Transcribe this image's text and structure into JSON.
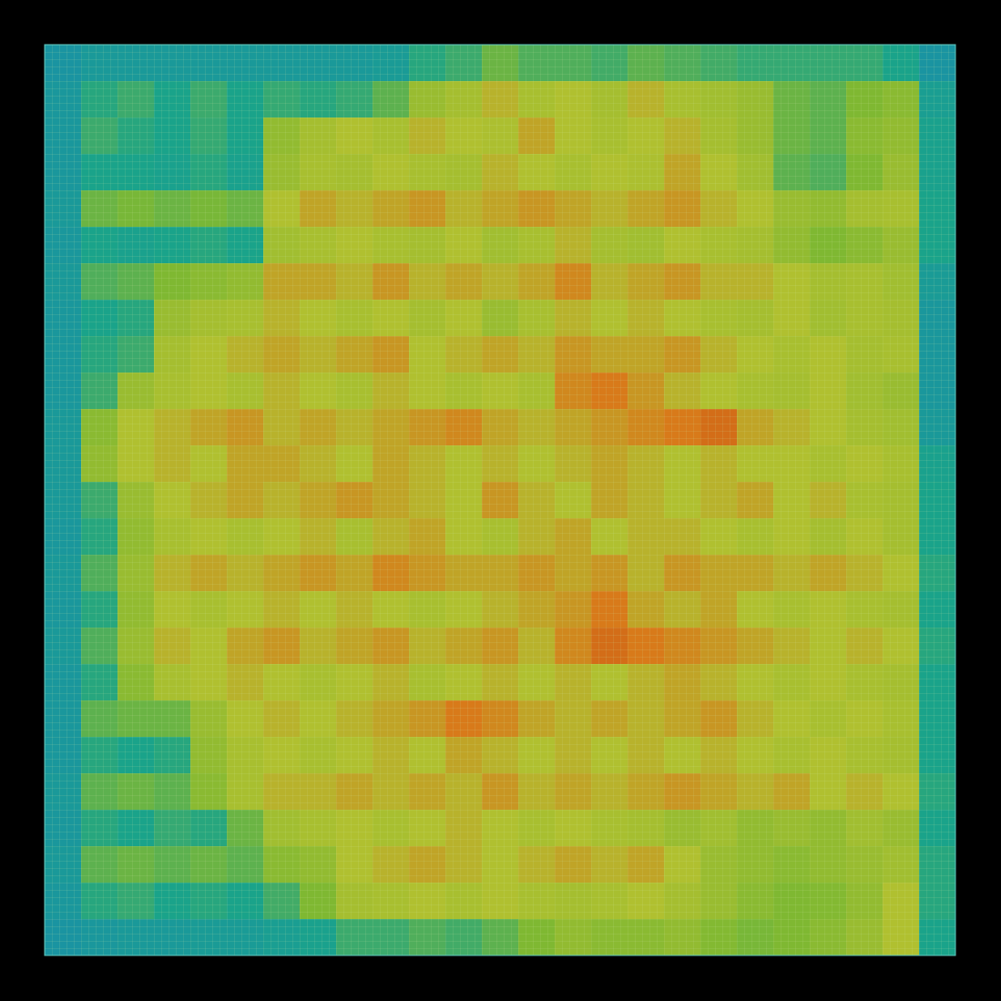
{
  "chart_data": {
    "type": "heatmap",
    "tick_labels": false,
    "zlim": [
      0,
      100
    ],
    "cells": [
      [
        15,
        20,
        20,
        20,
        20,
        20,
        20,
        20,
        20,
        22,
        32,
        35,
        42,
        38,
        38,
        36,
        40,
        38,
        36,
        34,
        34,
        34,
        34,
        30,
        15
      ],
      [
        18,
        32,
        35,
        30,
        35,
        30,
        34,
        32,
        34,
        40,
        52,
        55,
        60,
        56,
        58,
        55,
        60,
        56,
        54,
        52,
        42,
        40,
        45,
        48,
        25
      ],
      [
        18,
        35,
        32,
        30,
        34,
        30,
        50,
        55,
        58,
        56,
        60,
        58,
        57,
        62,
        58,
        56,
        58,
        60,
        55,
        52,
        42,
        40,
        48,
        50,
        28
      ],
      [
        18,
        30,
        30,
        28,
        32,
        28,
        52,
        56,
        55,
        58,
        56,
        55,
        60,
        58,
        56,
        58,
        57,
        62,
        58,
        54,
        40,
        38,
        45,
        52,
        28
      ],
      [
        20,
        42,
        44,
        42,
        44,
        42,
        58,
        62,
        60,
        62,
        64,
        60,
        62,
        64,
        62,
        60,
        62,
        64,
        60,
        58,
        52,
        50,
        55,
        56,
        30
      ],
      [
        18,
        30,
        28,
        30,
        32,
        30,
        54,
        56,
        58,
        56,
        55,
        58,
        54,
        56,
        60,
        55,
        54,
        58,
        56,
        55,
        50,
        45,
        48,
        52,
        30
      ],
      [
        20,
        38,
        40,
        45,
        48,
        50,
        62,
        62,
        60,
        64,
        60,
        62,
        60,
        62,
        66,
        60,
        62,
        64,
        60,
        60,
        58,
        55,
        56,
        54,
        22
      ],
      [
        18,
        30,
        32,
        52,
        55,
        56,
        60,
        58,
        56,
        58,
        55,
        58,
        52,
        56,
        60,
        58,
        60,
        58,
        56,
        55,
        58,
        54,
        56,
        55,
        18
      ],
      [
        18,
        32,
        35,
        55,
        58,
        60,
        62,
        60,
        62,
        64,
        58,
        60,
        62,
        60,
        64,
        62,
        62,
        64,
        60,
        58,
        56,
        58,
        55,
        56,
        18
      ],
      [
        18,
        35,
        52,
        56,
        58,
        56,
        60,
        58,
        56,
        60,
        58,
        56,
        58,
        56,
        66,
        68,
        64,
        60,
        58,
        56,
        55,
        58,
        54,
        52,
        18
      ],
      [
        20,
        48,
        58,
        60,
        62,
        64,
        60,
        62,
        60,
        62,
        64,
        66,
        62,
        60,
        62,
        64,
        66,
        68,
        70,
        62,
        60,
        58,
        55,
        54,
        20
      ],
      [
        20,
        50,
        58,
        60,
        58,
        62,
        62,
        60,
        58,
        62,
        60,
        58,
        60,
        58,
        60,
        62,
        60,
        58,
        60,
        58,
        58,
        56,
        58,
        56,
        28
      ],
      [
        20,
        35,
        52,
        58,
        60,
        62,
        60,
        62,
        64,
        62,
        60,
        58,
        64,
        60,
        58,
        62,
        60,
        58,
        60,
        62,
        58,
        60,
        56,
        55,
        30
      ],
      [
        18,
        32,
        50,
        56,
        58,
        56,
        58,
        60,
        56,
        60,
        62,
        58,
        56,
        60,
        62,
        58,
        60,
        60,
        58,
        56,
        58,
        55,
        58,
        55,
        30
      ],
      [
        20,
        38,
        52,
        60,
        62,
        60,
        62,
        64,
        62,
        66,
        64,
        62,
        62,
        64,
        62,
        64,
        60,
        64,
        62,
        62,
        60,
        62,
        60,
        58,
        32
      ],
      [
        18,
        32,
        50,
        58,
        56,
        58,
        60,
        58,
        60,
        58,
        56,
        58,
        60,
        62,
        64,
        68,
        62,
        60,
        62,
        58,
        56,
        58,
        56,
        55,
        30
      ],
      [
        20,
        38,
        52,
        60,
        58,
        62,
        64,
        60,
        62,
        64,
        60,
        62,
        64,
        60,
        66,
        70,
        68,
        66,
        64,
        62,
        60,
        58,
        60,
        58,
        32
      ],
      [
        18,
        32,
        48,
        56,
        58,
        60,
        58,
        56,
        58,
        60,
        56,
        58,
        60,
        58,
        60,
        58,
        60,
        62,
        60,
        58,
        56,
        58,
        56,
        55,
        30
      ],
      [
        18,
        40,
        42,
        42,
        52,
        58,
        60,
        58,
        60,
        62,
        64,
        68,
        66,
        62,
        60,
        62,
        60,
        62,
        64,
        60,
        58,
        56,
        58,
        56,
        30
      ],
      [
        18,
        32,
        30,
        32,
        50,
        56,
        58,
        56,
        58,
        60,
        58,
        62,
        60,
        58,
        60,
        58,
        60,
        58,
        60,
        58,
        56,
        58,
        56,
        55,
        30
      ],
      [
        20,
        40,
        42,
        40,
        48,
        56,
        60,
        60,
        62,
        60,
        62,
        60,
        64,
        60,
        62,
        60,
        62,
        64,
        62,
        60,
        62,
        58,
        60,
        58,
        32
      ],
      [
        18,
        32,
        30,
        34,
        32,
        42,
        54,
        56,
        58,
        56,
        58,
        60,
        58,
        56,
        58,
        56,
        55,
        52,
        54,
        50,
        52,
        50,
        54,
        52,
        30
      ],
      [
        20,
        40,
        42,
        40,
        42,
        40,
        48,
        50,
        58,
        60,
        62,
        60,
        58,
        60,
        62,
        60,
        62,
        58,
        52,
        50,
        48,
        50,
        52,
        54,
        32
      ],
      [
        18,
        32,
        34,
        30,
        32,
        30,
        36,
        45,
        55,
        56,
        58,
        56,
        58,
        56,
        55,
        56,
        58,
        55,
        52,
        48,
        45,
        46,
        50,
        58,
        32
      ],
      [
        15,
        18,
        20,
        20,
        22,
        22,
        25,
        28,
        35,
        35,
        38,
        36,
        40,
        45,
        50,
        48,
        48,
        50,
        46,
        44,
        45,
        48,
        52,
        58,
        30
      ]
    ]
  }
}
